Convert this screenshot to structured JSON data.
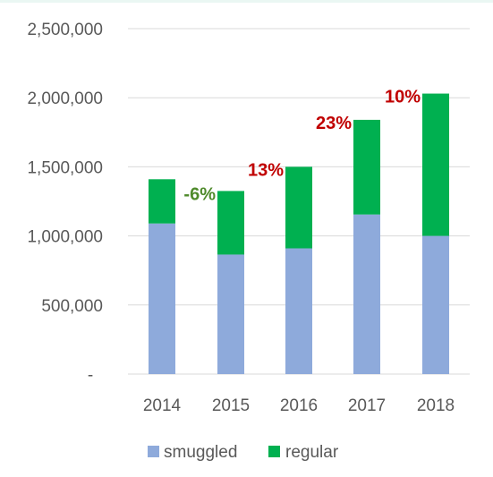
{
  "chart_data": {
    "type": "bar",
    "stacked": true,
    "categories": [
      "2014",
      "2015",
      "2016",
      "2017",
      "2018"
    ],
    "series": [
      {
        "name": "smuggled",
        "color": "#8eaadb",
        "values": [
          1090000,
          865000,
          910000,
          1155000,
          1000000
        ]
      },
      {
        "name": "regular",
        "color": "#00b050",
        "values": [
          320000,
          460000,
          590000,
          685000,
          1030000
        ]
      }
    ],
    "y_ticks": [
      {
        "value": 0,
        "label": "-"
      },
      {
        "value": 500000,
        "label": "500,000"
      },
      {
        "value": 1000000,
        "label": "1,000,000"
      },
      {
        "value": 1500000,
        "label": "1,500,000"
      },
      {
        "value": 2000000,
        "label": "2,000,000"
      },
      {
        "value": 2500000,
        "label": "2,500,000"
      }
    ],
    "ylim": [
      0,
      2500000
    ],
    "grid": true,
    "legend_position": "bottom",
    "annotations": [
      {
        "category": "2015",
        "text": "-6%",
        "color": "#4f8a2b"
      },
      {
        "category": "2016",
        "text": "13%",
        "color": "#c00000"
      },
      {
        "category": "2017",
        "text": "23%",
        "color": "#c00000"
      },
      {
        "category": "2018",
        "text": "10%",
        "color": "#c00000"
      }
    ]
  }
}
